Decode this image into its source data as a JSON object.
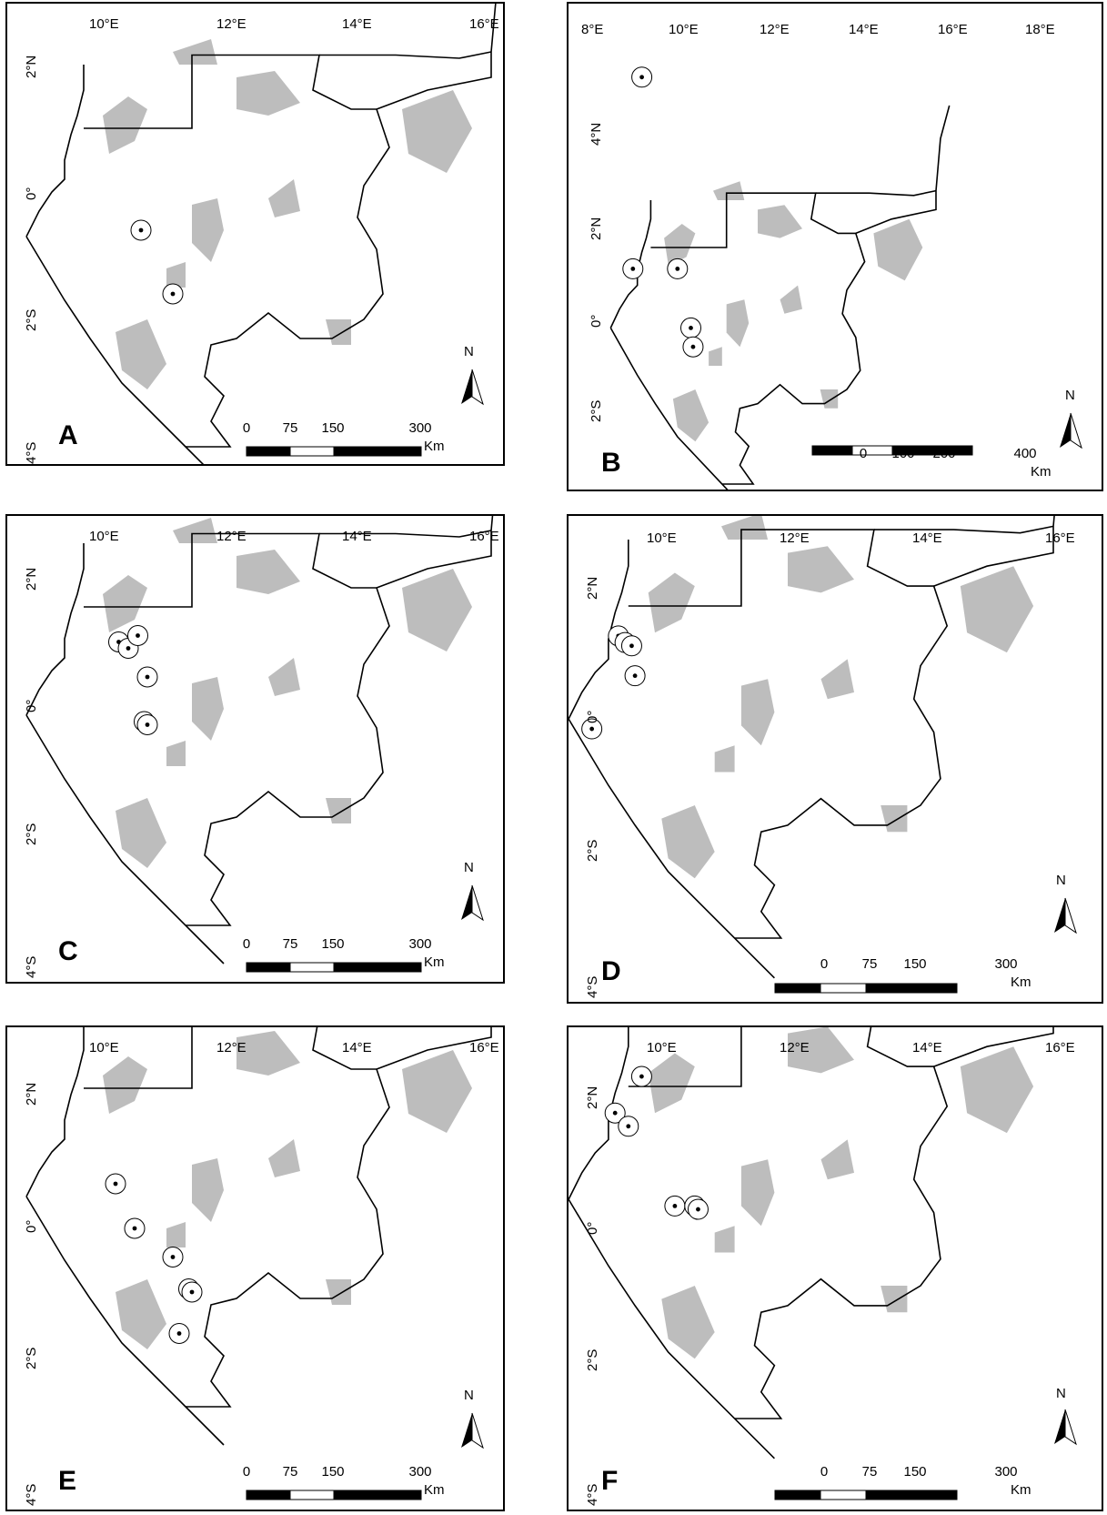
{
  "figure": {
    "panels": [
      {
        "id": "A",
        "letter": "A",
        "lon_labels": [
          "10°E",
          "12°E",
          "14°E",
          "16°E"
        ],
        "lat_labels": [
          "2°N",
          "0°",
          "2°S",
          "4°S"
        ],
        "scale_labels": [
          "0",
          "75",
          "150",
          "300"
        ],
        "scale_unit": "Km",
        "north_label": "N",
        "points": [
          [
            10.5,
            -0.6
          ],
          [
            11.0,
            -1.6
          ]
        ]
      },
      {
        "id": "B",
        "letter": "B",
        "lon_labels": [
          "8°E",
          "10°E",
          "12°E",
          "14°E",
          "16°E",
          "18°E"
        ],
        "lat_labels": [
          "4°N",
          "2°N",
          "0°",
          "2°S"
        ],
        "scale_labels": [
          "0",
          "100",
          "200",
          "400"
        ],
        "scale_unit": "Km",
        "north_label": "N",
        "points": [
          [
            9.4,
            4.6
          ],
          [
            9.2,
            0.55
          ],
          [
            10.2,
            0.55
          ],
          [
            10.5,
            -0.7
          ],
          [
            10.55,
            -1.1
          ]
        ]
      },
      {
        "id": "C",
        "letter": "C",
        "lon_labels": [
          "10°E",
          "12°E",
          "14°E",
          "16°E"
        ],
        "lat_labels": [
          "2°N",
          "0°",
          "2°S",
          "4°S"
        ],
        "scale_labels": [
          "0",
          "75",
          "150",
          "300"
        ],
        "scale_unit": "Km",
        "north_label": "N",
        "points": [
          [
            10.15,
            0.45
          ],
          [
            10.3,
            0.35
          ],
          [
            10.45,
            0.55
          ],
          [
            10.6,
            -0.1
          ],
          [
            10.55,
            -0.8
          ],
          [
            10.6,
            -0.85
          ]
        ]
      },
      {
        "id": "D",
        "letter": "D",
        "lon_labels": [
          "10°E",
          "12°E",
          "14°E",
          "16°E"
        ],
        "lat_labels": [
          "2°N",
          "0°",
          "2°S",
          "4°S"
        ],
        "scale_labels": [
          "0",
          "75",
          "150",
          "300"
        ],
        "scale_unit": "Km",
        "north_label": "N",
        "points": [
          [
            9.45,
            0.55
          ],
          [
            9.55,
            0.45
          ],
          [
            9.65,
            0.4
          ],
          [
            9.7,
            -0.05
          ],
          [
            9.05,
            -0.85
          ]
        ]
      },
      {
        "id": "E",
        "letter": "E",
        "lon_labels": [
          "10°E",
          "12°E",
          "14°E",
          "16°E"
        ],
        "lat_labels": [
          "2°N",
          "0°",
          "2°S",
          "4°S"
        ],
        "scale_labels": [
          "0",
          "75",
          "150",
          "300"
        ],
        "scale_unit": "Km",
        "north_label": "N",
        "points": [
          [
            10.1,
            -0.5
          ],
          [
            10.4,
            -1.2
          ],
          [
            11.0,
            -1.65
          ],
          [
            11.25,
            -2.15
          ],
          [
            11.3,
            -2.2
          ],
          [
            11.1,
            -2.85
          ]
        ]
      },
      {
        "id": "F",
        "letter": "F",
        "lon_labels": [
          "10°E",
          "12°E",
          "14°E",
          "16°E"
        ],
        "lat_labels": [
          "2°N",
          "0°",
          "2°S",
          "4°S"
        ],
        "scale_labels": [
          "0",
          "75",
          "150",
          "300"
        ],
        "scale_unit": "Km",
        "north_label": "N",
        "points": [
          [
            9.8,
            1.15
          ],
          [
            9.4,
            0.6
          ],
          [
            9.6,
            0.4
          ],
          [
            10.3,
            -0.8
          ],
          [
            10.6,
            -0.8
          ],
          [
            10.65,
            -0.85
          ]
        ]
      }
    ]
  }
}
